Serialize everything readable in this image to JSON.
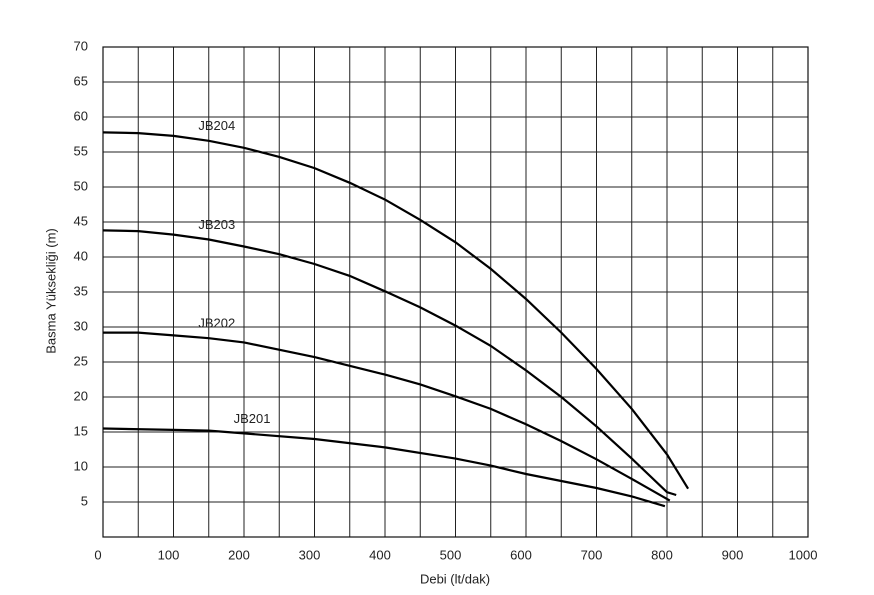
{
  "chart_data": {
    "type": "line",
    "x_label": "Debi (lt/dak)",
    "y_label": "Basma Yüksekliği (m)",
    "xlim": [
      0,
      1000
    ],
    "xticks": [
      0,
      100,
      200,
      300,
      400,
      500,
      600,
      700,
      800,
      900,
      1000
    ],
    "ylim": [
      0,
      70
    ],
    "yticks": [
      5,
      10,
      15,
      20,
      25,
      30,
      35,
      40,
      45,
      50,
      55,
      60,
      65,
      70
    ],
    "grid": true,
    "series": [
      {
        "name": "JB201",
        "color": "#000000",
        "x": [
          0,
          100,
          150,
          200,
          300,
          400,
          500,
          550,
          600,
          700,
          750,
          797
        ],
        "values": [
          15.5,
          15.3,
          15.2,
          14.8,
          14,
          12.8,
          11.2,
          10.2,
          9,
          7,
          5.8,
          4.4
        ]
      },
      {
        "name": "JB202",
        "color": "#000000",
        "x": [
          0,
          50,
          100,
          150,
          200,
          300,
          400,
          450,
          500,
          550,
          600,
          650,
          700,
          750,
          804
        ],
        "values": [
          29.2,
          29.2,
          28.8,
          28.4,
          27.8,
          25.7,
          23.2,
          21.8,
          20.1,
          18.3,
          16.1,
          13.7,
          11.1,
          8.3,
          5.2
        ]
      },
      {
        "name": "JB203",
        "color": "#000000",
        "x": [
          0,
          50,
          100,
          150,
          200,
          250,
          300,
          350,
          400,
          450,
          500,
          550,
          600,
          650,
          700,
          750,
          800,
          813
        ],
        "values": [
          43.8,
          43.7,
          43.2,
          42.5,
          41.5,
          40.4,
          39,
          37.3,
          35.1,
          32.8,
          30.2,
          27.3,
          23.8,
          20,
          15.8,
          11.2,
          6.4,
          6
        ]
      },
      {
        "name": "JB204",
        "color": "#000000",
        "x": [
          0,
          50,
          100,
          150,
          200,
          250,
          300,
          350,
          400,
          450,
          500,
          550,
          600,
          650,
          700,
          750,
          800,
          830
        ],
        "values": [
          57.8,
          57.7,
          57.3,
          56.6,
          55.6,
          54.3,
          52.7,
          50.6,
          48.2,
          45.3,
          42.1,
          38.3,
          34,
          29.2,
          24,
          18.3,
          11.8,
          6.9
        ]
      }
    ]
  }
}
